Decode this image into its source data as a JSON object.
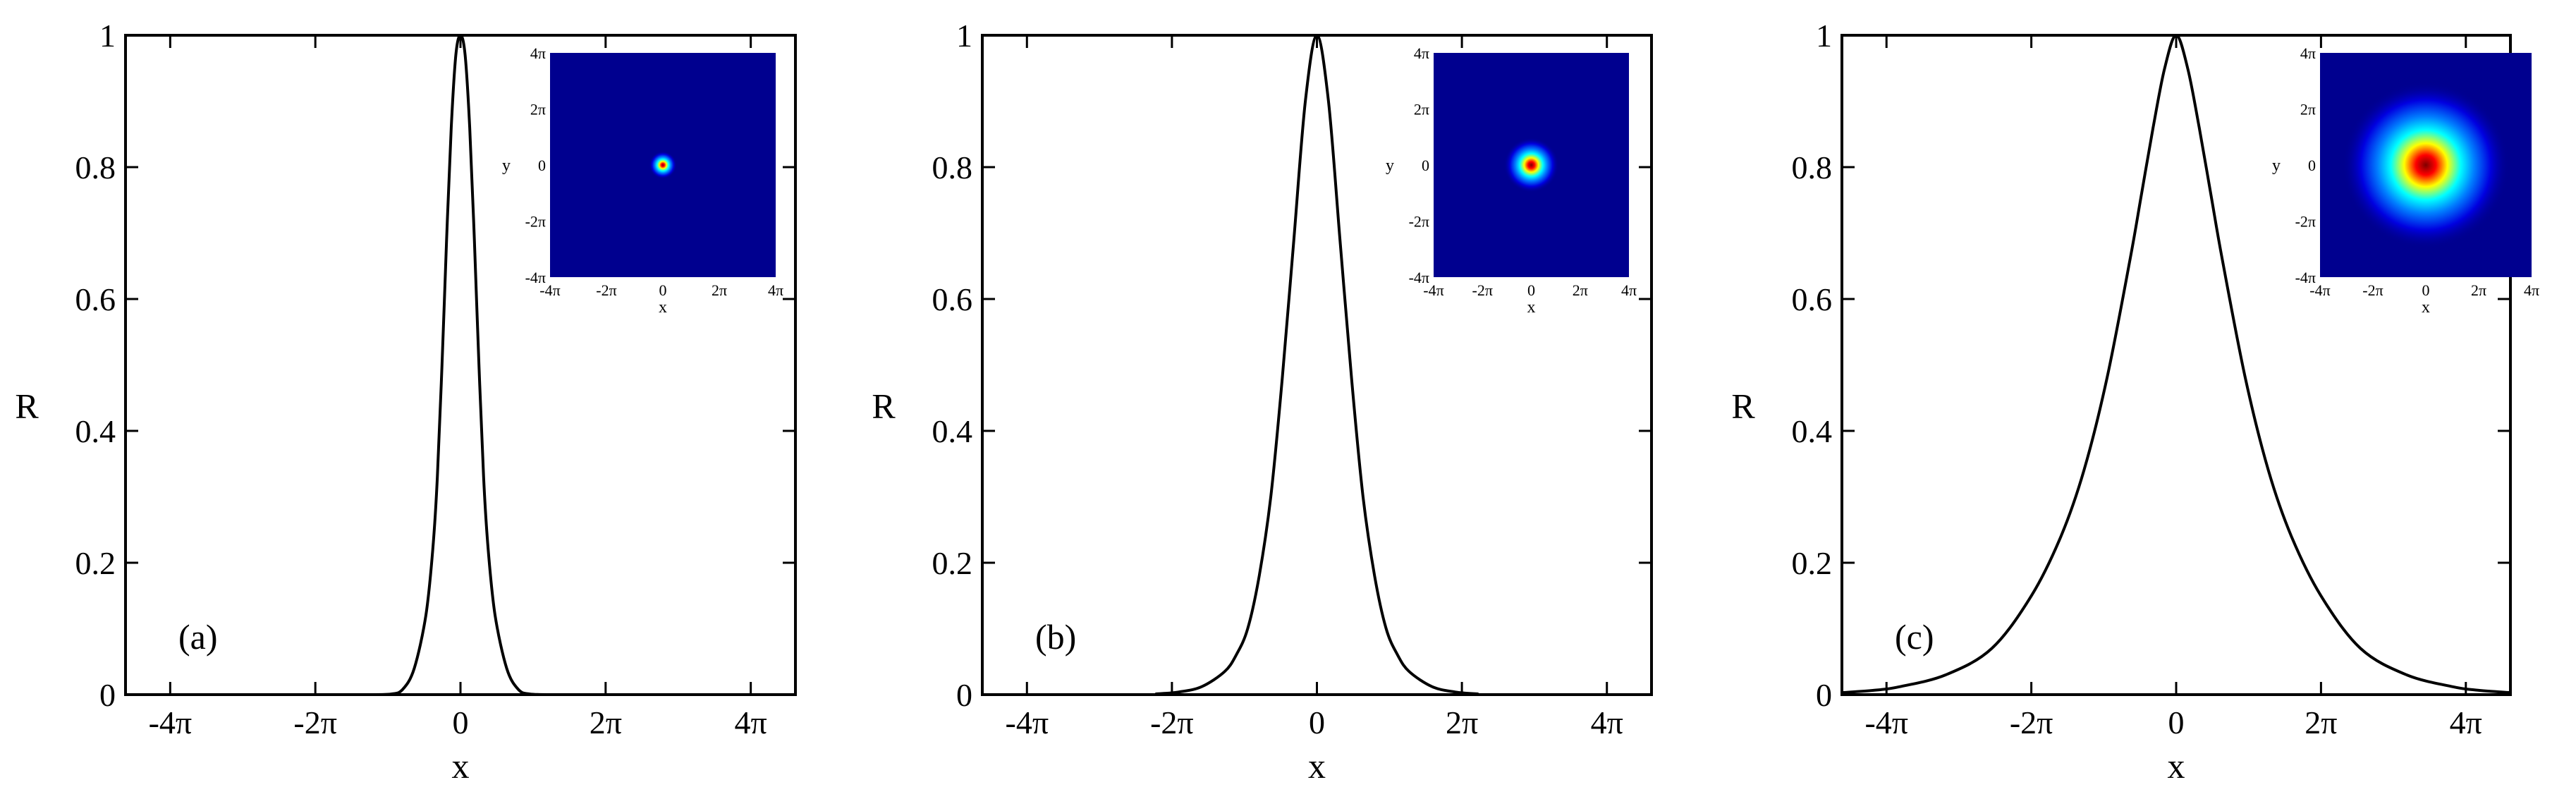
{
  "chart_data": [
    {
      "type": "line",
      "panel_label": "(a)",
      "xlabel": "x",
      "ylabel": "R",
      "xlim": [
        -14.5,
        14.5
      ],
      "ylim": [
        0,
        1
      ],
      "xticks": [
        -12.566,
        -6.283,
        0,
        6.283,
        12.566
      ],
      "xtick_labels": [
        "-4π",
        "-2π",
        "0",
        "2π",
        "4π"
      ],
      "yticks": [
        0,
        0.2,
        0.4,
        0.6,
        0.8,
        1
      ],
      "ytick_labels": [
        "0",
        "0.2",
        "0.4",
        "0.6",
        "0.8",
        "1"
      ],
      "grid": false,
      "series": [
        {
          "x": [
            -4,
            -3,
            -2.5,
            -2,
            -1.5,
            -1.2,
            -1,
            -0.8,
            -0.6,
            -0.4,
            -0.2,
            0,
            0.2,
            0.4,
            0.6,
            0.8,
            1,
            1.2,
            1.5,
            2,
            2.5,
            3,
            4
          ],
          "y": [
            0,
            0.001,
            0.008,
            0.04,
            0.12,
            0.22,
            0.33,
            0.5,
            0.69,
            0.86,
            0.97,
            1.0,
            0.97,
            0.86,
            0.69,
            0.5,
            0.33,
            0.22,
            0.12,
            0.04,
            0.008,
            0.001,
            0
          ]
        }
      ],
      "inset": {
        "xlabel": "x",
        "ylabel": "y",
        "tick_labels": [
          "-4π",
          "-2π",
          "0",
          "2π",
          "4π"
        ],
        "spot_radius": 0.7
      }
    },
    {
      "type": "line",
      "panel_label": "(b)",
      "xlabel": "x",
      "ylabel": "R",
      "xlim": [
        -14.5,
        14.5
      ],
      "ylim": [
        0,
        1
      ],
      "xticks": [
        -12.566,
        -6.283,
        0,
        6.283,
        12.566
      ],
      "xtick_labels": [
        "-4π",
        "-2π",
        "0",
        "2π",
        "4π"
      ],
      "yticks": [
        0,
        0.2,
        0.4,
        0.6,
        0.8,
        1
      ],
      "ytick_labels": [
        "0",
        "0.2",
        "0.4",
        "0.6",
        "0.8",
        "1"
      ],
      "grid": false,
      "series": [
        {
          "x": [
            -7,
            -6,
            -5,
            -4,
            -3.5,
            -3,
            -2.5,
            -2,
            -1.5,
            -1,
            -0.5,
            0,
            0.5,
            1,
            1.5,
            2,
            2.5,
            3,
            3.5,
            4,
            5,
            6,
            7
          ],
          "y": [
            0.001,
            0.004,
            0.012,
            0.035,
            0.06,
            0.1,
            0.18,
            0.3,
            0.48,
            0.69,
            0.9,
            1.0,
            0.9,
            0.69,
            0.48,
            0.3,
            0.18,
            0.1,
            0.06,
            0.035,
            0.012,
            0.004,
            0.001
          ]
        }
      ],
      "inset": {
        "xlabel": "x",
        "ylabel": "y",
        "tick_labels": [
          "-4π",
          "-2π",
          "0",
          "2π",
          "4π"
        ],
        "spot_radius": 1.6
      }
    },
    {
      "type": "line",
      "panel_label": "(c)",
      "xlabel": "x",
      "ylabel": "R",
      "xlim": [
        -14.5,
        14.5
      ],
      "ylim": [
        0,
        1
      ],
      "xticks": [
        -12.566,
        -6.283,
        0,
        6.283,
        12.566
      ],
      "xtick_labels": [
        "-4π",
        "-2π",
        "0",
        "2π",
        "4π"
      ],
      "yticks": [
        0,
        0.2,
        0.4,
        0.6,
        0.8,
        1
      ],
      "ytick_labels": [
        "0",
        "0.2",
        "0.4",
        "0.6",
        "0.8",
        "1"
      ],
      "grid": false,
      "series": [
        {
          "x": [
            -14.5,
            -13,
            -12,
            -10,
            -8,
            -6.28,
            -5,
            -4,
            -3,
            -2,
            -1.5,
            -1,
            -0.5,
            0,
            0.5,
            1,
            1.5,
            2,
            3,
            4,
            5,
            6.28,
            8,
            10,
            12,
            13,
            14.5
          ],
          "y": [
            0.003,
            0.007,
            0.012,
            0.03,
            0.07,
            0.15,
            0.24,
            0.34,
            0.48,
            0.66,
            0.76,
            0.86,
            0.95,
            1.0,
            0.95,
            0.86,
            0.76,
            0.66,
            0.48,
            0.34,
            0.24,
            0.15,
            0.07,
            0.03,
            0.012,
            0.007,
            0.003
          ]
        }
      ],
      "inset": {
        "xlabel": "x",
        "ylabel": "y",
        "tick_labels": [
          "-4π",
          "-2π",
          "0",
          "2π",
          "4π"
        ],
        "spot_radius": 4.5
      }
    }
  ]
}
